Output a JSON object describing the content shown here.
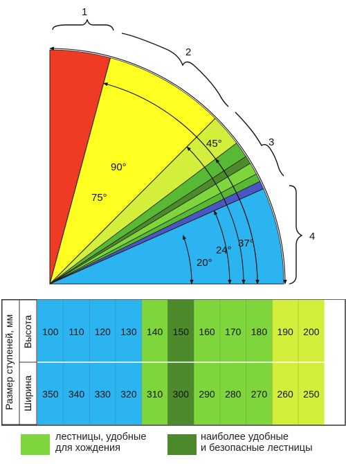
{
  "colors": {
    "red": "#ef3b24",
    "yellow": "#ffff22",
    "yellow_green": "#d4ef3b",
    "light_green": "#7ed63c",
    "mid_green": "#57b934",
    "dark_green": "#4c8a2c",
    "blue": "#4a56c6",
    "sky": "#2cb4f0",
    "table_stripe": "#0f7ea8"
  },
  "diagram": {
    "sections": [
      {
        "label": "1",
        "range_deg": [
          75,
          90
        ],
        "color": "red"
      },
      {
        "label": "2",
        "range_deg": [
          45,
          75
        ],
        "color": "yellow"
      },
      {
        "label": "3",
        "range_deg": [
          24,
          45
        ],
        "color": "green"
      },
      {
        "label": "4",
        "range_deg": [
          0,
          24
        ],
        "color": "blue"
      }
    ],
    "sectors": [
      {
        "from": 75,
        "to": 90,
        "color": "red"
      },
      {
        "from": 45,
        "to": 75,
        "color": "yellow"
      },
      {
        "from": 37,
        "to": 45,
        "color": "yellow_green"
      },
      {
        "from": 33,
        "to": 37,
        "color": "mid_green"
      },
      {
        "from": 31,
        "to": 33,
        "color": "dark_green"
      },
      {
        "from": 28,
        "to": 31,
        "color": "light_green"
      },
      {
        "from": 26,
        "to": 28,
        "color": "mid_green"
      },
      {
        "from": 24,
        "to": 26,
        "color": "blue"
      },
      {
        "from": 0,
        "to": 24,
        "color": "sky"
      }
    ],
    "angle_labels": [
      {
        "text": "90°",
        "angle": 90
      },
      {
        "text": "75°",
        "angle": 75
      },
      {
        "text": "45°",
        "angle": 45
      },
      {
        "text": "37°",
        "angle": 37
      },
      {
        "text": "24°",
        "angle": 24
      },
      {
        "text": "20°",
        "angle": 20
      }
    ]
  },
  "table": {
    "group_label": "Размер ступеней, мм",
    "row_labels": [
      "Высота",
      "Ширина"
    ],
    "heights": [
      "100",
      "110",
      "120",
      "130",
      "140",
      "150",
      "160",
      "170",
      "180",
      "190",
      "200"
    ],
    "widths": [
      "350",
      "340",
      "330",
      "320",
      "310",
      "300",
      "290",
      "280",
      "270",
      "260",
      "250"
    ],
    "column_colors": [
      "sky",
      "sky",
      "sky",
      "sky",
      "light_green",
      "dark_green",
      "light_green",
      "light_green",
      "light_green",
      "yellow_green",
      "yellow_green"
    ]
  },
  "legend": [
    {
      "color": "light_green",
      "text": "лестницы, удобные\nдля хождения"
    },
    {
      "color": "dark_green",
      "text": "наиболее удобные\nи безопасные лестницы"
    }
  ]
}
